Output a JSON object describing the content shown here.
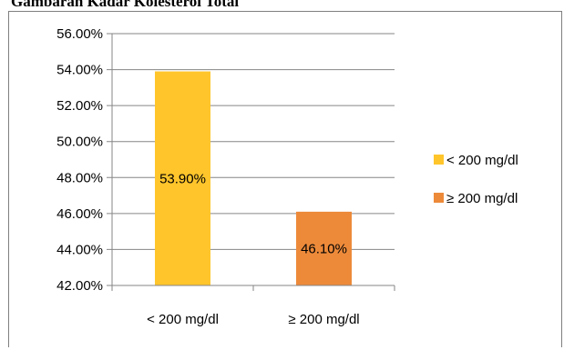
{
  "title": "Gambaran Kadar Kolesterol Total",
  "chart_data": {
    "type": "bar",
    "categories": [
      "< 200 mg/dl",
      "≥ 200 mg/dl"
    ],
    "values": [
      53.9,
      46.1
    ],
    "data_labels": [
      "53.90%",
      "46.10%"
    ],
    "ylim": [
      42,
      56
    ],
    "yticks": [
      "42.00%",
      "44.00%",
      "46.00%",
      "48.00%",
      "50.00%",
      "52.00%",
      "54.00%",
      "56.00%"
    ],
    "ytick_values": [
      42,
      44,
      46,
      48,
      50,
      52,
      54,
      56
    ],
    "grid": "horizontal",
    "legend_position": "right",
    "legend": [
      "< 200 mg/dl",
      "≥ 200 mg/dl"
    ],
    "colors": [
      "#FFC52B",
      "#ED8A3A"
    ],
    "xlabel": "",
    "ylabel": ""
  }
}
